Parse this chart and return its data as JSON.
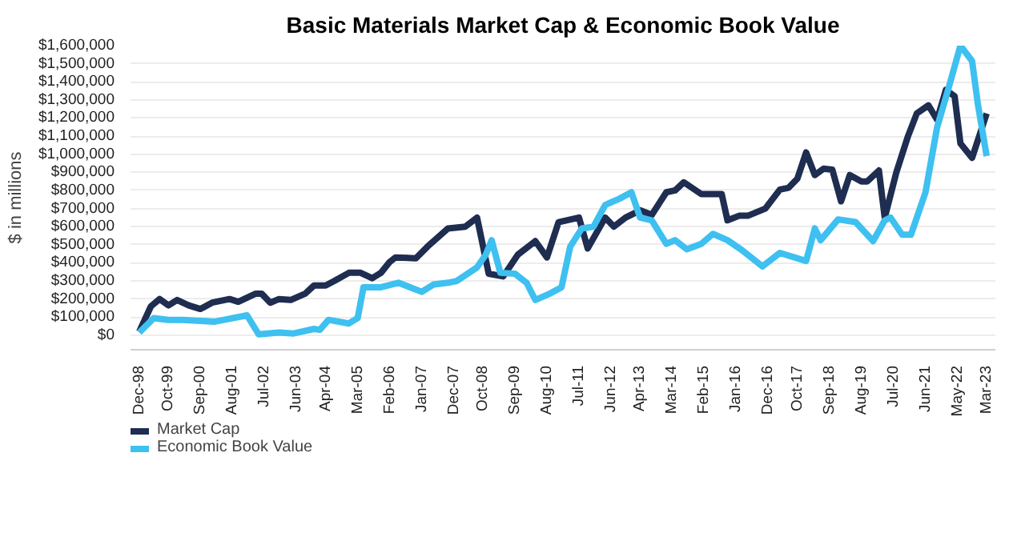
{
  "chart_data": {
    "type": "line",
    "title": "Basic Materials Market Cap & Economic Book Value",
    "ylabel": "$ in millions",
    "xlim": [
      "1998-09",
      "2023-06"
    ],
    "ylim": [
      -80000,
      1600000
    ],
    "xticks": [
      {
        "value": "1998-12",
        "label": "Dec-98"
      },
      {
        "value": "1999-10",
        "label": "Oct-99"
      },
      {
        "value": "2000-09",
        "label": "Sep-00"
      },
      {
        "value": "2001-08",
        "label": "Aug-01"
      },
      {
        "value": "2002-07",
        "label": "Jul-02"
      },
      {
        "value": "2003-06",
        "label": "Jun-03"
      },
      {
        "value": "2004-04",
        "label": "Apr-04"
      },
      {
        "value": "2005-03",
        "label": "Mar-05"
      },
      {
        "value": "2006-02",
        "label": "Feb-06"
      },
      {
        "value": "2007-01",
        "label": "Jan-07"
      },
      {
        "value": "2007-12",
        "label": "Dec-07"
      },
      {
        "value": "2008-10",
        "label": "Oct-08"
      },
      {
        "value": "2009-09",
        "label": "Sep-09"
      },
      {
        "value": "2010-08",
        "label": "Aug-10"
      },
      {
        "value": "2011-07",
        "label": "Jul-11"
      },
      {
        "value": "2012-06",
        "label": "Jun-12"
      },
      {
        "value": "2013-04",
        "label": "Apr-13"
      },
      {
        "value": "2014-03",
        "label": "Mar-14"
      },
      {
        "value": "2015-02",
        "label": "Feb-15"
      },
      {
        "value": "2016-01",
        "label": "Jan-16"
      },
      {
        "value": "2016-12",
        "label": "Dec-16"
      },
      {
        "value": "2017-10",
        "label": "Oct-17"
      },
      {
        "value": "2018-09",
        "label": "Sep-18"
      },
      {
        "value": "2019-08",
        "label": "Aug-19"
      },
      {
        "value": "2020-07",
        "label": "Jul-20"
      },
      {
        "value": "2021-06",
        "label": "Jun-21"
      },
      {
        "value": "2022-05",
        "label": "May-22"
      },
      {
        "value": "2023-03",
        "label": "Mar-23"
      }
    ],
    "yticks": [
      {
        "value": 0,
        "label": "$0"
      },
      {
        "value": 100000,
        "label": "$100,000"
      },
      {
        "value": 200000,
        "label": "$200,000"
      },
      {
        "value": 300000,
        "label": "$300,000"
      },
      {
        "value": 400000,
        "label": "$400,000"
      },
      {
        "value": 500000,
        "label": "$500,000"
      },
      {
        "value": 600000,
        "label": "$600,000"
      },
      {
        "value": 700000,
        "label": "$700,000"
      },
      {
        "value": 800000,
        "label": "$800,000"
      },
      {
        "value": 900000,
        "label": "$900,000"
      },
      {
        "value": 1000000,
        "label": "$1,000,000"
      },
      {
        "value": 1100000,
        "label": "$1,100,000"
      },
      {
        "value": 1200000,
        "label": "$1,200,000"
      },
      {
        "value": 1300000,
        "label": "$1,300,000"
      },
      {
        "value": 1400000,
        "label": "$1,400,000"
      },
      {
        "value": 1500000,
        "label": "$1,500,000"
      },
      {
        "value": 1600000,
        "label": "$1,600,000"
      }
    ],
    "grid": "y",
    "legend": "bottom",
    "line_style": "solid",
    "series": [
      {
        "name": "Market Cap",
        "color": "#1e2d50",
        "x": [
          "1998-12",
          "1999-04",
          "1999-07",
          "1999-10",
          "2000-01",
          "2000-05",
          "2000-09",
          "2001-01",
          "2001-07",
          "2001-10",
          "2002-04",
          "2002-06",
          "2002-09",
          "2002-12",
          "2003-04",
          "2003-09",
          "2003-12",
          "2004-04",
          "2004-07",
          "2004-12",
          "2005-04",
          "2005-08",
          "2005-11",
          "2006-02",
          "2006-04",
          "2006-11",
          "2007-03",
          "2007-10",
          "2008-04",
          "2008-08",
          "2008-12",
          "2009-05",
          "2009-10",
          "2010-04",
          "2010-08",
          "2010-12",
          "2011-07",
          "2011-10",
          "2012-04",
          "2012-07",
          "2012-11",
          "2013-04",
          "2013-08",
          "2014-01",
          "2014-04",
          "2014-07",
          "2015-01",
          "2015-08",
          "2015-10",
          "2016-02",
          "2016-05",
          "2016-11",
          "2017-04",
          "2017-07",
          "2017-10",
          "2018-01",
          "2018-04",
          "2018-07",
          "2018-10",
          "2019-01",
          "2019-04",
          "2019-08",
          "2019-10",
          "2020-02",
          "2020-04",
          "2020-08",
          "2020-12",
          "2021-03",
          "2021-07",
          "2021-10",
          "2022-01",
          "2022-04",
          "2022-06",
          "2022-10",
          "2023-03"
        ],
        "values": [
          20000,
          160000,
          200000,
          165000,
          195000,
          165000,
          145000,
          180000,
          200000,
          185000,
          230000,
          230000,
          180000,
          200000,
          195000,
          230000,
          275000,
          275000,
          300000,
          345000,
          345000,
          315000,
          345000,
          405000,
          430000,
          425000,
          490000,
          590000,
          600000,
          650000,
          340000,
          325000,
          445000,
          520000,
          430000,
          625000,
          650000,
          480000,
          650000,
          600000,
          650000,
          690000,
          665000,
          790000,
          800000,
          845000,
          780000,
          780000,
          635000,
          660000,
          660000,
          700000,
          805000,
          815000,
          865000,
          1010000,
          885000,
          920000,
          915000,
          740000,
          885000,
          850000,
          850000,
          910000,
          650000,
          900000,
          1100000,
          1225000,
          1270000,
          1190000,
          1355000,
          1320000,
          1060000,
          980000,
          1225000
        ]
      },
      {
        "name": "Economic Book Value",
        "color": "#3ec0f0",
        "x": [
          "1998-12",
          "1999-05",
          "1999-10",
          "2000-03",
          "2001-02",
          "2002-01",
          "2002-05",
          "2002-12",
          "2003-05",
          "2003-12",
          "2004-02",
          "2004-05",
          "2004-12",
          "2005-03",
          "2005-05",
          "2005-11",
          "2006-05",
          "2007-01",
          "2007-05",
          "2007-10",
          "2008-01",
          "2008-08",
          "2008-11",
          "2009-01",
          "2009-04",
          "2009-09",
          "2010-01",
          "2010-04",
          "2010-09",
          "2011-01",
          "2011-04",
          "2011-08",
          "2011-12",
          "2012-04",
          "2012-09",
          "2013-01",
          "2013-04",
          "2013-08",
          "2014-01",
          "2014-04",
          "2014-08",
          "2015-01",
          "2015-05",
          "2015-10",
          "2016-03",
          "2016-10",
          "2017-04",
          "2018-01",
          "2018-04",
          "2018-06",
          "2018-12",
          "2019-06",
          "2019-12",
          "2020-04",
          "2020-06",
          "2020-10",
          "2021-01",
          "2021-06",
          "2021-10",
          "2022-02",
          "2022-06",
          "2022-10",
          "2022-12",
          "2023-03"
        ],
        "values": [
          15000,
          95000,
          85000,
          85000,
          75000,
          110000,
          5000,
          15000,
          10000,
          35000,
          30000,
          85000,
          65000,
          95000,
          265000,
          265000,
          290000,
          240000,
          280000,
          290000,
          300000,
          375000,
          445000,
          525000,
          345000,
          340000,
          290000,
          195000,
          230000,
          265000,
          490000,
          590000,
          600000,
          720000,
          755000,
          790000,
          650000,
          635000,
          505000,
          525000,
          475000,
          505000,
          560000,
          525000,
          470000,
          380000,
          455000,
          410000,
          590000,
          525000,
          640000,
          625000,
          520000,
          635000,
          650000,
          555000,
          555000,
          790000,
          1150000,
          1370000,
          1600000,
          1515000,
          1275000,
          990000
        ]
      }
    ]
  }
}
